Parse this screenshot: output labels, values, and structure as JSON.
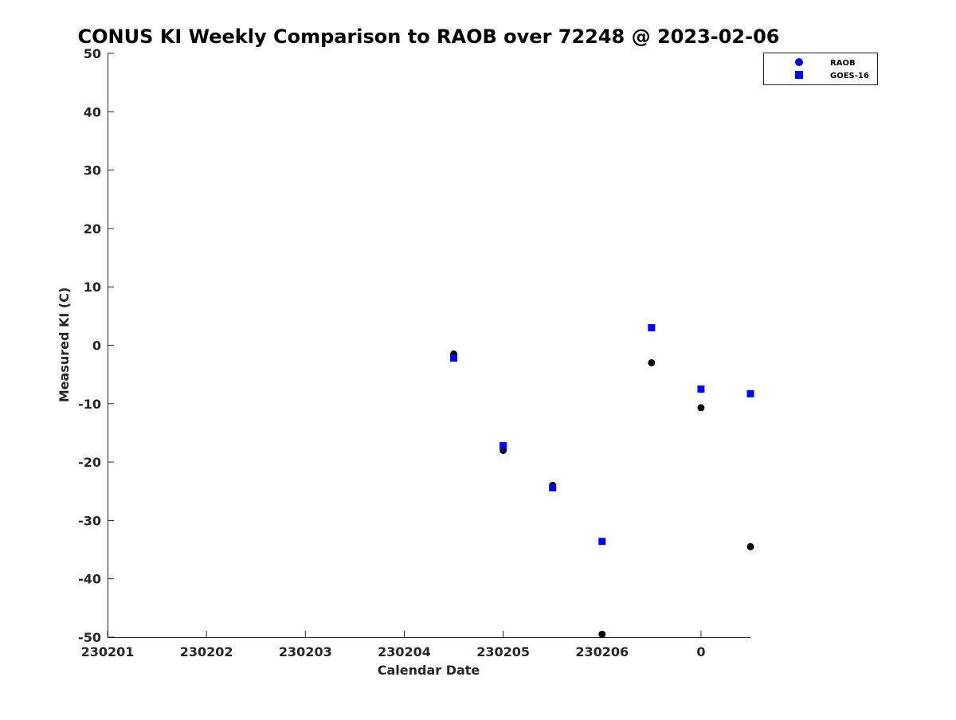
{
  "chart_data": {
    "type": "scatter",
    "title": "CONUS KI Weekly Comparison to RAOB over 72248 @ 2023-02-06",
    "xlabel": "Calendar Date",
    "ylabel": "Measured KI (C)",
    "xlim": [
      0,
      6.5
    ],
    "ylim": [
      -50,
      50
    ],
    "x_ticks": [
      {
        "x": 0,
        "label": "230201"
      },
      {
        "x": 1,
        "label": "230202"
      },
      {
        "x": 2,
        "label": "230203"
      },
      {
        "x": 3,
        "label": "230204"
      },
      {
        "x": 4,
        "label": "230205"
      },
      {
        "x": 5,
        "label": "230206"
      },
      {
        "x": 6,
        "label": "0"
      }
    ],
    "y_ticks": [
      50,
      40,
      30,
      20,
      10,
      0,
      -10,
      -20,
      -30,
      -40,
      -50
    ],
    "grid": false,
    "legend_position": "top-right",
    "series": [
      {
        "name": "RAOB",
        "marker": "circle",
        "legend_color": "#0000ff",
        "color": "#000000",
        "points": [
          {
            "x": 3.5,
            "y": -1.5
          },
          {
            "x": 4.0,
            "y": -18.0
          },
          {
            "x": 4.5,
            "y": -24.0
          },
          {
            "x": 5.0,
            "y": -49.5
          },
          {
            "x": 5.5,
            "y": -3.0
          },
          {
            "x": 6.0,
            "y": -10.7
          },
          {
            "x": 6.5,
            "y": -34.5
          }
        ]
      },
      {
        "name": "GOES-16",
        "marker": "square",
        "legend_color": "#0000ff",
        "color": "#0000ff",
        "points": [
          {
            "x": 3.5,
            "y": -2.2
          },
          {
            "x": 4.0,
            "y": -17.2
          },
          {
            "x": 4.5,
            "y": -24.4
          },
          {
            "x": 5.0,
            "y": -33.6
          },
          {
            "x": 5.5,
            "y": 3.0
          },
          {
            "x": 6.0,
            "y": -7.5
          },
          {
            "x": 6.5,
            "y": -8.3
          }
        ]
      }
    ]
  }
}
